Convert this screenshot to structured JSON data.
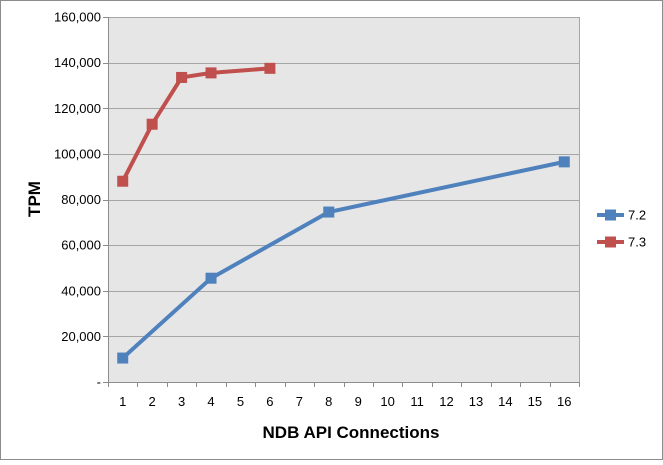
{
  "chart_data": {
    "type": "line",
    "title": "",
    "xlabel": "NDB API Connections",
    "ylabel": "TPM",
    "categories": [
      "1",
      "2",
      "3",
      "4",
      "5",
      "6",
      "7",
      "8",
      "9",
      "10",
      "11",
      "12",
      "13",
      "14",
      "15",
      "16"
    ],
    "y_tick_labels": [
      "-",
      "20,000",
      "40,000",
      "60,000",
      "80,000",
      "100,000",
      "120,000",
      "140,000",
      "160,000"
    ],
    "ylim": [
      0,
      160000
    ],
    "grid": true,
    "legend_position": "right",
    "series": [
      {
        "name": "7.2",
        "color": "#4F81BD",
        "points": [
          {
            "x": "1",
            "y": 10500
          },
          {
            "x": "4",
            "y": 45500
          },
          {
            "x": "8",
            "y": 74500
          },
          {
            "x": "16",
            "y": 96500
          }
        ]
      },
      {
        "name": "7.3",
        "color": "#C0504D",
        "points": [
          {
            "x": "1",
            "y": 88000
          },
          {
            "x": "2",
            "y": 113000
          },
          {
            "x": "3",
            "y": 133500
          },
          {
            "x": "4",
            "y": 135500
          },
          {
            "x": "6",
            "y": 137500
          }
        ]
      }
    ]
  },
  "colors": {
    "plot_background": "#E6E6E6",
    "gridline": "#A6A6A6",
    "axis_line": "#8C8C8C",
    "outer_border": "#8C8C8C"
  }
}
